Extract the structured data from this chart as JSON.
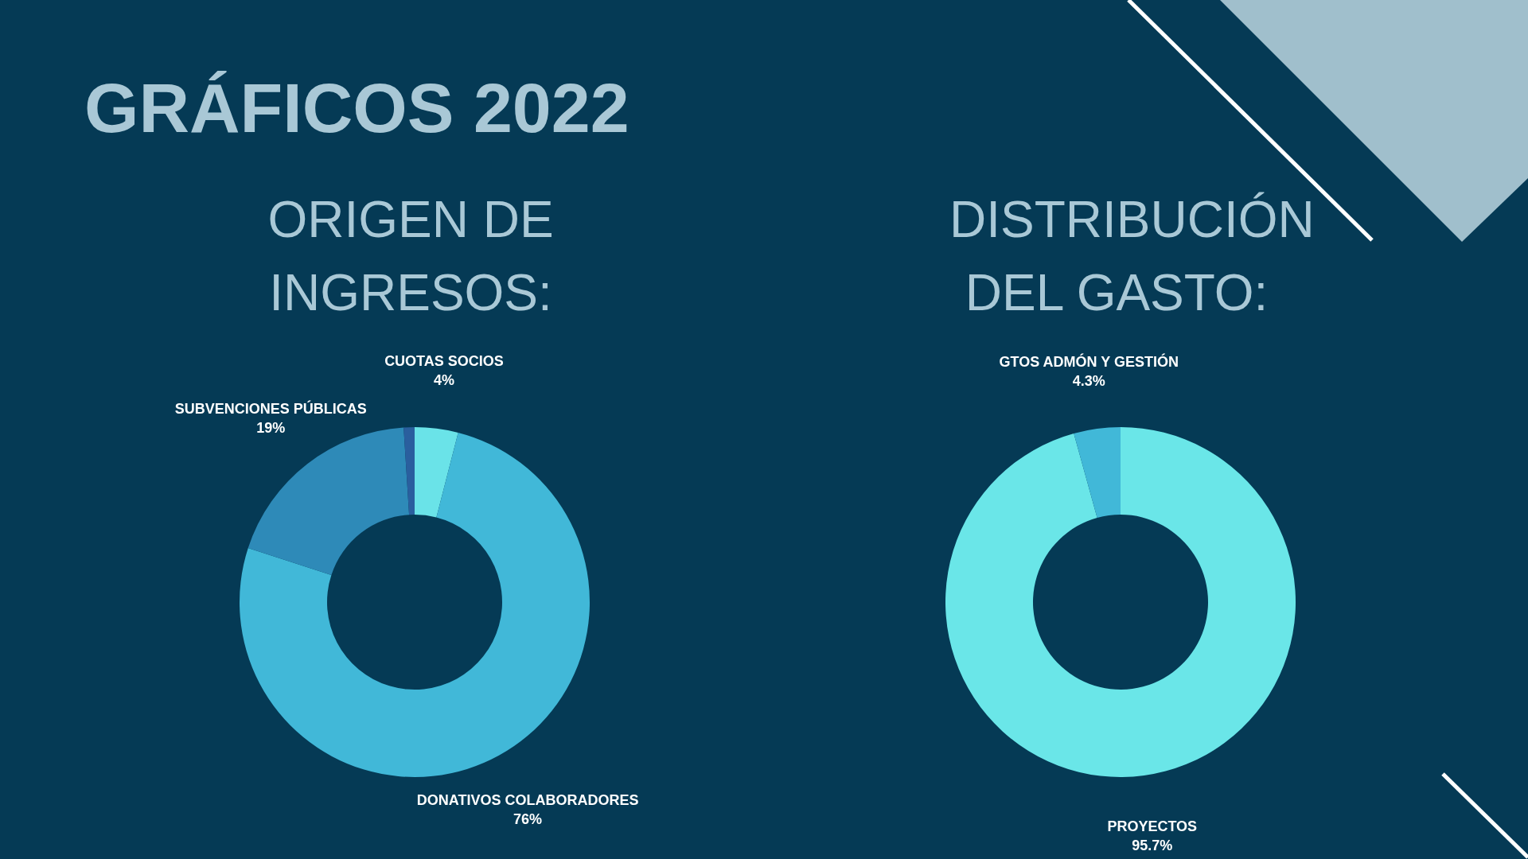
{
  "chart_data": [
    {
      "type": "donut",
      "title": "GRÁFICOS 2022",
      "subtitle": "ORIGEN DE INGRESOS:",
      "categories": [
        "CUOTAS SOCIOS",
        "DONATIVOS COLABORADORES",
        "SUBVENCIONES PÚBLICAS",
        null
      ],
      "values": [
        4,
        76,
        19,
        1
      ],
      "value_labels": [
        "4%",
        "76%",
        "19%",
        null
      ],
      "colors": [
        "#6ae3e8",
        "#41b8d8",
        "#2e8ab8",
        "#2a5f9e"
      ]
    },
    {
      "type": "donut",
      "subtitle": "DISTRIBUCIÓN DEL GASTO:",
      "categories": [
        "PROYECTOS",
        "GTOS ADMÓN Y GESTIÓN"
      ],
      "values": [
        95.7,
        4.3
      ],
      "value_labels": [
        "95.7%",
        "4.3%"
      ],
      "colors": [
        "#6ae6e8",
        "#41b8d8"
      ]
    }
  ]
}
